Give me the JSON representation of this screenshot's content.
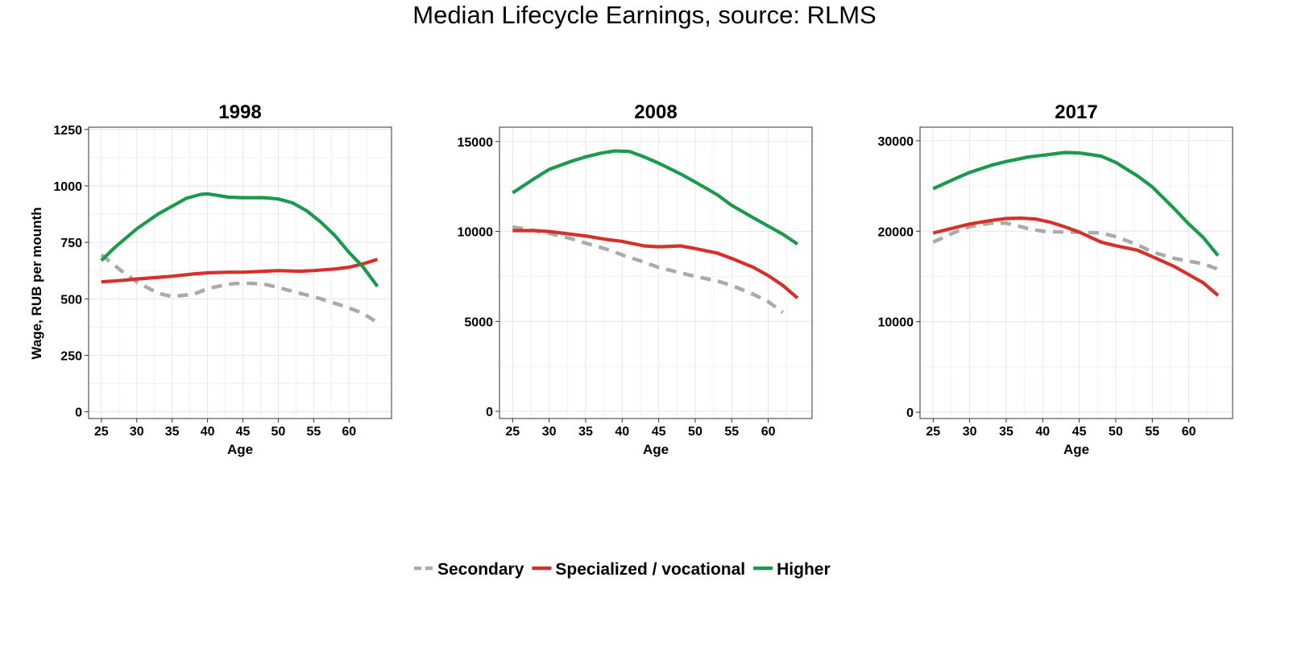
{
  "figure": {
    "title": "Median Lifecycle Earnings, source: RLMS"
  },
  "legend": {
    "position": "bottom",
    "items": [
      {
        "label": "Secondary",
        "color": "#aaaaaa",
        "dash": "dashed"
      },
      {
        "label": "Specialized / vocational",
        "color": "#d7302b",
        "dash": "solid"
      },
      {
        "label": "Higher",
        "color": "#1b9a4e",
        "dash": "solid"
      }
    ]
  },
  "chart_data": [
    {
      "type": "line",
      "title": "1998",
      "xlabel": "Age",
      "ylabel": "Wage, RUB per mounth",
      "xlim": [
        23.2,
        66.0
      ],
      "ylim": [
        -30,
        1260
      ],
      "xticks": [
        25,
        30,
        35,
        40,
        45,
        50,
        55,
        60
      ],
      "yticks": [
        0,
        250,
        500,
        750,
        1000,
        1250
      ],
      "grid": true,
      "series": [
        {
          "name": "Secondary",
          "color": "#aaaaaa",
          "dash": "dashed",
          "x": [
            25,
            28,
            30,
            33,
            35,
            38,
            40,
            43,
            45,
            48,
            50,
            53,
            55,
            58,
            60,
            62,
            64
          ],
          "y": [
            695,
            620,
            575,
            525,
            510,
            520,
            545,
            565,
            570,
            565,
            550,
            525,
            510,
            480,
            460,
            435,
            395
          ]
        },
        {
          "name": "Specialized / vocational",
          "color": "#d7302b",
          "dash": "solid",
          "x": [
            25,
            28,
            30,
            33,
            35,
            38,
            40,
            43,
            45,
            48,
            50,
            53,
            55,
            58,
            60,
            62,
            64
          ],
          "y": [
            575,
            582,
            588,
            595,
            600,
            610,
            615,
            618,
            618,
            622,
            625,
            622,
            625,
            632,
            640,
            655,
            675
          ]
        },
        {
          "name": "Higher",
          "color": "#1b9a4e",
          "dash": "solid",
          "x": [
            25,
            27,
            30,
            33,
            35,
            37,
            39,
            40,
            41,
            43,
            45,
            48,
            50,
            52,
            54,
            56,
            58,
            60,
            62,
            64
          ],
          "y": [
            670,
            730,
            810,
            875,
            910,
            945,
            962,
            965,
            960,
            950,
            948,
            948,
            942,
            925,
            890,
            840,
            780,
            705,
            640,
            555
          ]
        }
      ]
    },
    {
      "type": "line",
      "title": "2008",
      "xlabel": "Age",
      "ylabel": "",
      "xlim": [
        23.2,
        66.0
      ],
      "ylim": [
        -400,
        15800
      ],
      "xticks": [
        25,
        30,
        35,
        40,
        45,
        50,
        55,
        60
      ],
      "yticks": [
        0,
        5000,
        10000,
        15000
      ],
      "grid": true,
      "series": [
        {
          "name": "Secondary",
          "color": "#aaaaaa",
          "dash": "dashed",
          "x": [
            25,
            28,
            30,
            33,
            35,
            38,
            40,
            43,
            45,
            48,
            50,
            53,
            55,
            58,
            60,
            62
          ],
          "y": [
            10250,
            10050,
            9900,
            9600,
            9350,
            9000,
            8700,
            8300,
            8000,
            7700,
            7500,
            7250,
            7000,
            6500,
            6100,
            5500
          ]
        },
        {
          "name": "Specialized / vocational",
          "color": "#d7302b",
          "dash": "solid",
          "x": [
            25,
            28,
            30,
            33,
            35,
            38,
            40,
            43,
            45,
            48,
            50,
            53,
            55,
            58,
            60,
            62,
            64
          ],
          "y": [
            10050,
            10050,
            10000,
            9850,
            9750,
            9550,
            9450,
            9200,
            9150,
            9200,
            9050,
            8800,
            8500,
            8000,
            7550,
            7000,
            6300
          ]
        },
        {
          "name": "Higher",
          "color": "#1b9a4e",
          "dash": "solid",
          "x": [
            25,
            28,
            30,
            33,
            35,
            37,
            39,
            41,
            43,
            45,
            48,
            50,
            53,
            55,
            58,
            60,
            62,
            64
          ],
          "y": [
            12150,
            12950,
            13450,
            13900,
            14150,
            14350,
            14480,
            14450,
            14150,
            13800,
            13200,
            12750,
            12050,
            11450,
            10750,
            10300,
            9850,
            9300
          ]
        }
      ]
    },
    {
      "type": "line",
      "title": "2017",
      "xlabel": "Age",
      "ylabel": "",
      "xlim": [
        23.2,
        66.0
      ],
      "ylim": [
        -700,
        31500
      ],
      "xticks": [
        25,
        30,
        35,
        40,
        45,
        50,
        55,
        60
      ],
      "yticks": [
        0,
        10000,
        20000,
        30000
      ],
      "grid": true,
      "series": [
        {
          "name": "Secondary",
          "color": "#aaaaaa",
          "dash": "dashed",
          "x": [
            25,
            28,
            30,
            33,
            35,
            38,
            40,
            43,
            45,
            48,
            50,
            53,
            55,
            58,
            60,
            62,
            64
          ],
          "y": [
            18800,
            19900,
            20500,
            20900,
            20900,
            20300,
            20000,
            19900,
            19900,
            19800,
            19400,
            18500,
            17700,
            17000,
            16700,
            16400,
            15800
          ]
        },
        {
          "name": "Specialized / vocational",
          "color": "#d7302b",
          "dash": "solid",
          "x": [
            25,
            28,
            30,
            33,
            35,
            37,
            39,
            41,
            43,
            45,
            48,
            50,
            53,
            55,
            58,
            60,
            62,
            64
          ],
          "y": [
            19800,
            20400,
            20800,
            21200,
            21400,
            21450,
            21350,
            21000,
            20500,
            19900,
            18800,
            18400,
            17900,
            17200,
            16100,
            15200,
            14300,
            12900
          ]
        },
        {
          "name": "Higher",
          "color": "#1b9a4e",
          "dash": "solid",
          "x": [
            25,
            28,
            30,
            33,
            35,
            38,
            40,
            43,
            45,
            48,
            50,
            53,
            55,
            58,
            60,
            62,
            64
          ],
          "y": [
            24700,
            25800,
            26500,
            27300,
            27700,
            28200,
            28400,
            28700,
            28650,
            28300,
            27600,
            26100,
            24900,
            22500,
            20800,
            19300,
            17300
          ]
        }
      ]
    }
  ]
}
